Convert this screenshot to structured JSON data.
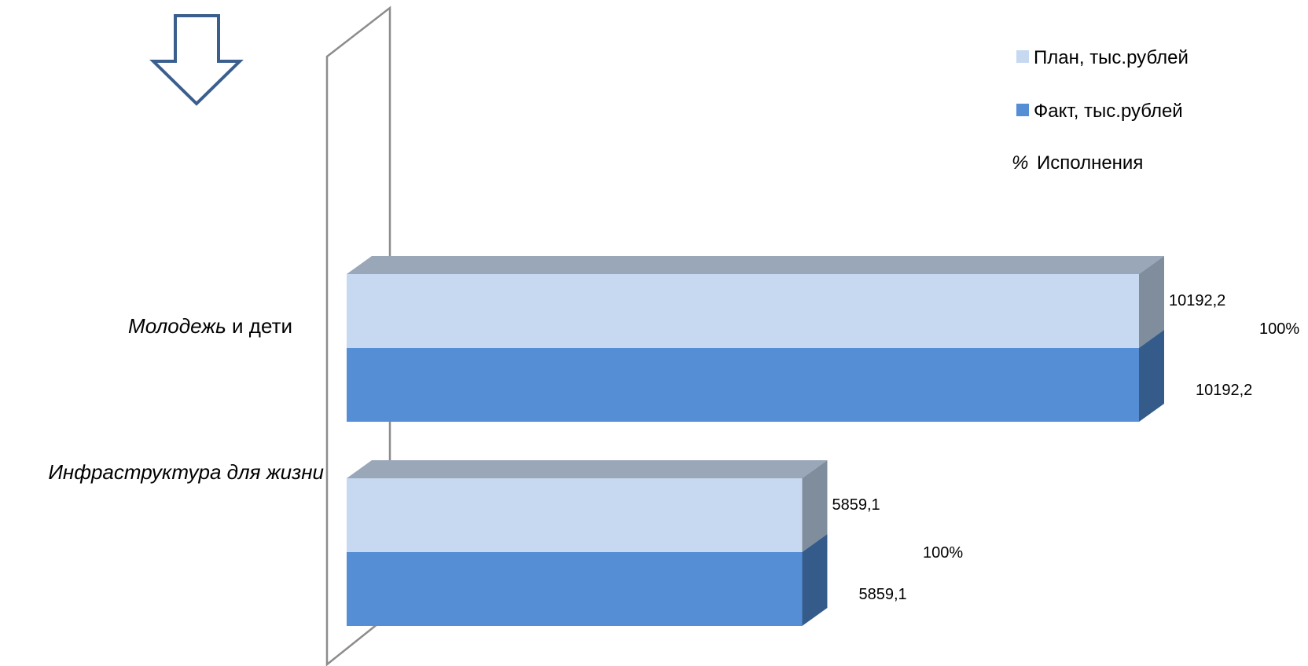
{
  "chart_data": {
    "type": "bar",
    "orientation": "horizontal",
    "title": "",
    "xlabel": "",
    "ylabel": "",
    "xlim": [
      0,
      10192.2
    ],
    "grid": false,
    "legend_position": "top-right",
    "categories": [
      {
        "italic": "Молодежь",
        "normal": " и дети"
      },
      {
        "italic": "Инфраструктура для жизни",
        "normal": ""
      }
    ],
    "series": [
      {
        "name": "План, тыс.рублей",
        "values": [
          10192.2,
          5859.1
        ],
        "labels": [
          "10192,2",
          "5859,1"
        ],
        "color": "#c6d9f1"
      },
      {
        "name": "Факт, тыс.рублей",
        "values": [
          10192.2,
          5859.1
        ],
        "labels": [
          "10192,2",
          "5859,1"
        ],
        "color": "#558ed5"
      }
    ],
    "percent": {
      "symbol": "%",
      "name": "Исполнения",
      "values": [
        100,
        100
      ],
      "labels": [
        "100%",
        "100%"
      ]
    }
  },
  "colors": {
    "plan_front": "#c6d9f1",
    "plan_top": "#9aa7b8",
    "plan_side": "#808d9c",
    "fact_front": "#558ed5",
    "fact_side": "#355b8a",
    "wall": "#8c8c8c",
    "arrow": "#3a5f8f"
  },
  "decor": {
    "arrow_icon": "down-arrow-outline-icon"
  }
}
